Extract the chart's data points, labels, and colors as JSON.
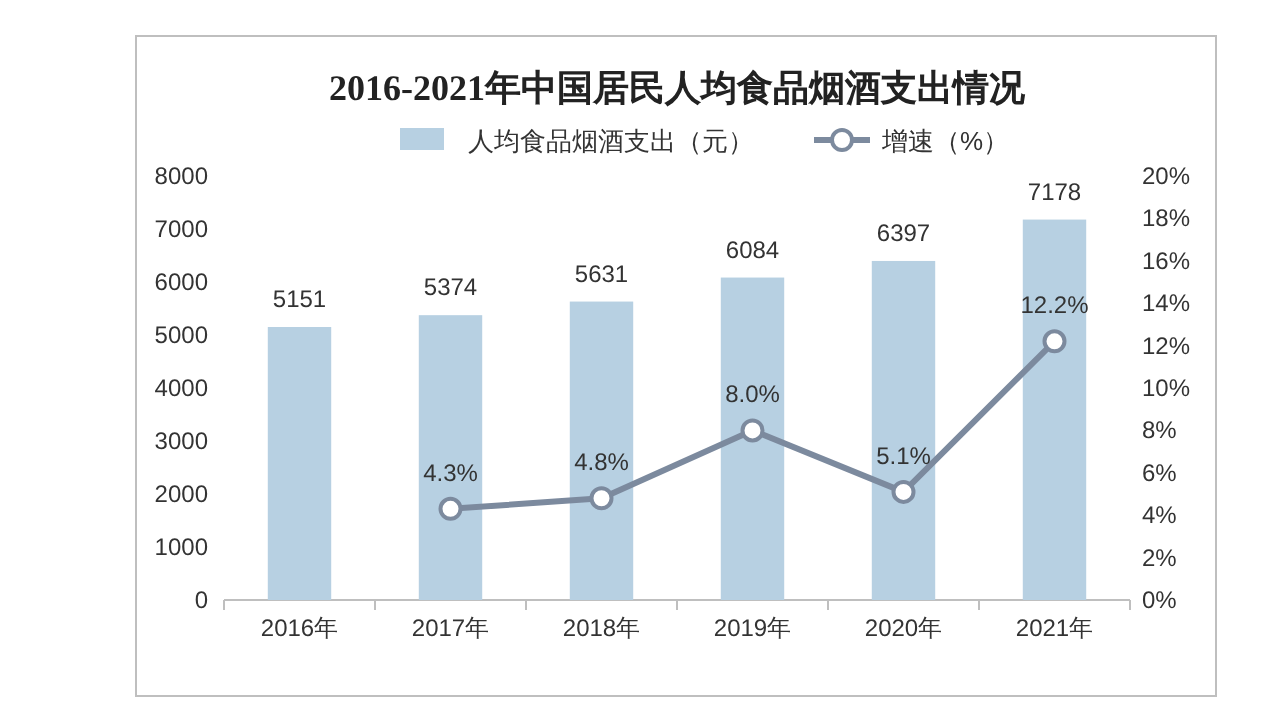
{
  "chart_data": {
    "type": "bar",
    "title": "2016-2021年中国居民人均食品烟酒支出情况",
    "categories": [
      "2016年",
      "2017年",
      "2018年",
      "2019年",
      "2020年",
      "2021年"
    ],
    "series": [
      {
        "name": "人均食品烟酒支出（元）",
        "color": "#b7d0e2",
        "values": [
          5151,
          5374,
          5631,
          6084,
          6397,
          7178
        ],
        "value_labels": [
          "5151",
          "5374",
          "5631",
          "6084",
          "6397",
          "7178"
        ]
      },
      {
        "name": "增速（%）",
        "type": "line",
        "axis": "y2",
        "color": "#7c8a9e",
        "marker": "circle",
        "values": [
          null,
          4.3,
          4.8,
          8.0,
          5.1,
          12.2
        ],
        "value_labels": [
          null,
          "4.3%",
          "4.8%",
          "8.0%",
          "5.1%",
          "12.2%"
        ]
      }
    ],
    "ylim": [
      0,
      8000
    ],
    "yticks": [
      0,
      1000,
      2000,
      3000,
      4000,
      5000,
      6000,
      7000,
      8000
    ],
    "y2lim": [
      0,
      20
    ],
    "y2ticks": [
      {
        "value": 0,
        "label": "0%"
      },
      {
        "value": 2,
        "label": "2%"
      },
      {
        "value": 4,
        "label": "4%"
      },
      {
        "value": 6,
        "label": "6%"
      },
      {
        "value": 8,
        "label": "8%"
      },
      {
        "value": 10,
        "label": "10%"
      },
      {
        "value": 12,
        "label": "12%"
      },
      {
        "value": 14,
        "label": "14%"
      },
      {
        "value": 16,
        "label": "16%"
      },
      {
        "value": 18,
        "label": "18%"
      },
      {
        "value": 20,
        "label": "20%"
      }
    ],
    "legend": "top"
  }
}
